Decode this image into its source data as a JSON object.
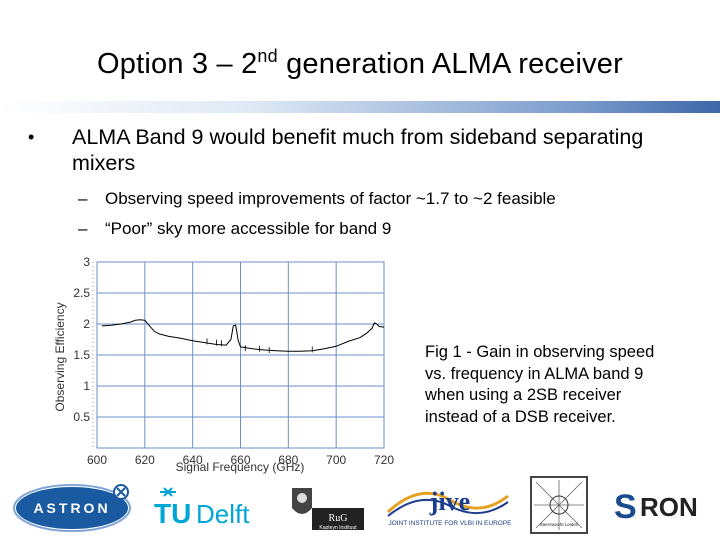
{
  "slide": {
    "title_main": "Option 3 – 2",
    "title_sup": "nd",
    "title_rest": " generation ALMA receiver",
    "bullet": "ALMA Band 9 would benefit much from sideband separating mixers",
    "sub_bullets": [
      "Observing speed improvements of factor ~1.7 to ~2 feasible",
      "“Poor” sky more accessible for band 9"
    ],
    "caption": "Fig 1 - Gain in observing speed vs. frequency in ALMA band 9 when using a 2SB receiver instead of a DSB receiver."
  },
  "chart_data": {
    "type": "line",
    "xlabel": "Signal Frequency (GHz)",
    "ylabel": "Observing Efficiency",
    "xlim": [
      600,
      720
    ],
    "ylim": [
      0,
      3
    ],
    "xticks": [
      600,
      620,
      640,
      660,
      680,
      700,
      720
    ],
    "yticks": [
      0.5,
      1,
      1.5,
      2,
      2.5,
      3
    ],
    "grid": true,
    "series": [
      {
        "color": "#000000",
        "x": [
          602,
          606,
          610,
          614,
          616,
          618,
          620,
          622,
          624,
          626,
          630,
          635,
          640,
          645,
          650,
          654,
          656,
          657,
          658,
          659,
          660,
          662,
          665,
          670,
          675,
          680,
          685,
          690,
          695,
          700,
          705,
          710,
          713,
          715,
          716,
          717,
          718,
          720
        ],
        "y": [
          1.97,
          1.98,
          2.0,
          2.03,
          2.06,
          2.07,
          2.06,
          1.97,
          1.88,
          1.84,
          1.8,
          1.77,
          1.73,
          1.7,
          1.67,
          1.66,
          1.75,
          1.97,
          1.98,
          1.74,
          1.63,
          1.62,
          1.6,
          1.58,
          1.57,
          1.56,
          1.56,
          1.57,
          1.6,
          1.64,
          1.72,
          1.78,
          1.86,
          1.93,
          2.02,
          2.0,
          1.96,
          1.95
        ]
      }
    ]
  },
  "logos": {
    "astron": "ASTRON",
    "tudelft_tu": "TU",
    "tudelft_delft": "Delft",
    "rug": "RuG",
    "rug_sub": "Kapteyn Instituut",
    "jive": "jive",
    "jive_sub": "JOINT INSTITUTE FOR VLBI IN EUROPE",
    "leiden": "Sterrewacht Leiden",
    "sron_s": "S",
    "sron_rest": "RON"
  },
  "colors": {
    "astron_blue": "#1a5aa0",
    "tudelft_cyan": "#00a6d6",
    "jive_blue": "#1c3c8c",
    "jive_orange": "#e8a020",
    "sron_blue": "#1a4a90",
    "grid_blue": "#6d8fc8",
    "rule_blue": "#3e66a8"
  }
}
